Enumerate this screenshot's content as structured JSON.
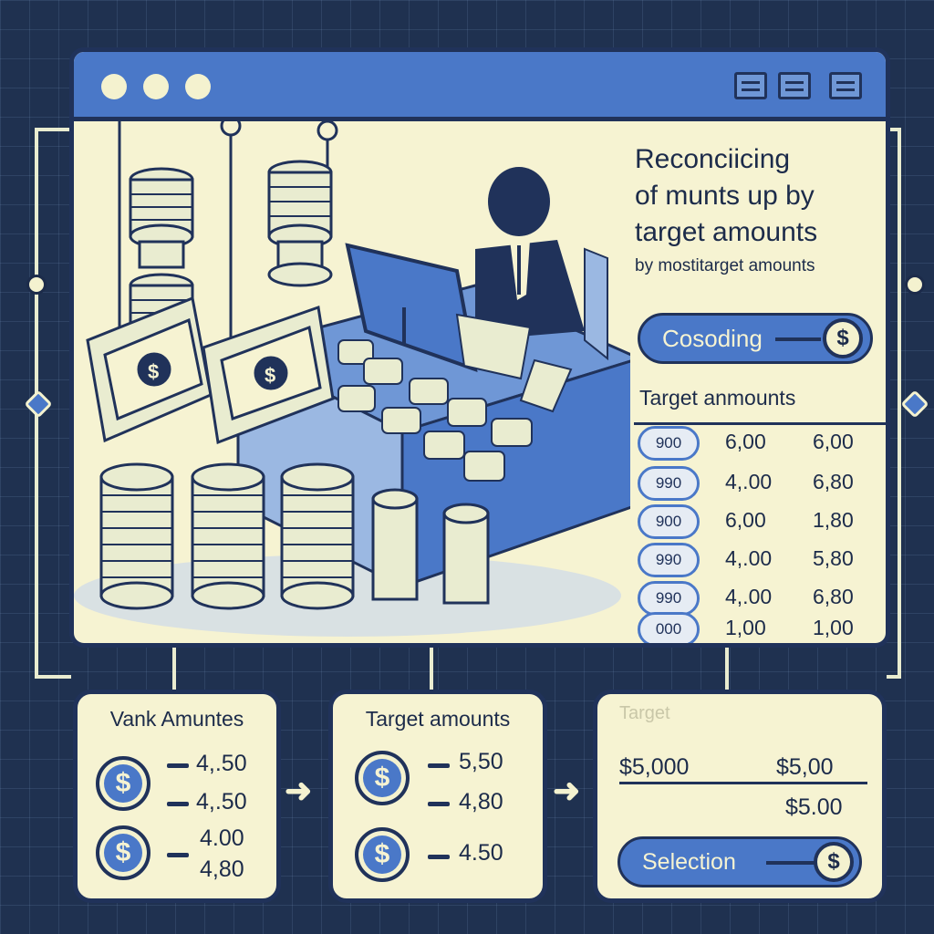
{
  "window": {
    "title_dots": 3,
    "heading": "Reconciicing of munts up by target amounts",
    "heading_line1": "Reconciicing",
    "heading_line2": "of munts up by",
    "heading_line3": "target amounts",
    "subheading": "by mostitarget amounts",
    "pill_label": "Cosoding",
    "pill_icon": "$",
    "target_label": "Target anmounts",
    "rows": [
      {
        "tag": "900",
        "v1": "6,00",
        "v2": "6,00"
      },
      {
        "tag": "990",
        "v1": "4,.00",
        "v2": "6,80"
      },
      {
        "tag": "900",
        "v1": "6,00",
        "v2": "1,80"
      },
      {
        "tag": "990",
        "v1": "4,.00",
        "v2": "5,80"
      },
      {
        "tag": "990",
        "v1": "4,.00",
        "v2": "6,80"
      },
      {
        "tag": "000",
        "v1": "1,00",
        "v2": "1,00"
      }
    ]
  },
  "cards": {
    "left": {
      "title": "Vank Amuntes",
      "icon": "$",
      "amounts": [
        "4,.50",
        "4,.50",
        "4.00",
        "4,80"
      ]
    },
    "middle": {
      "title": "Target amounts",
      "icon": "$",
      "amounts": [
        "5,50",
        "4,80",
        "4.50"
      ]
    },
    "right": {
      "title": "Target",
      "left_amount": "$5,000",
      "right_amount_1": "$5,00",
      "right_amount_2": "$5.00",
      "button_label": "Selection",
      "button_icon": "$"
    }
  },
  "colors": {
    "background": "#1f3150",
    "panel": "#f6f3d2",
    "accent": "#4a78c8",
    "ink": "#1c2b4a"
  }
}
